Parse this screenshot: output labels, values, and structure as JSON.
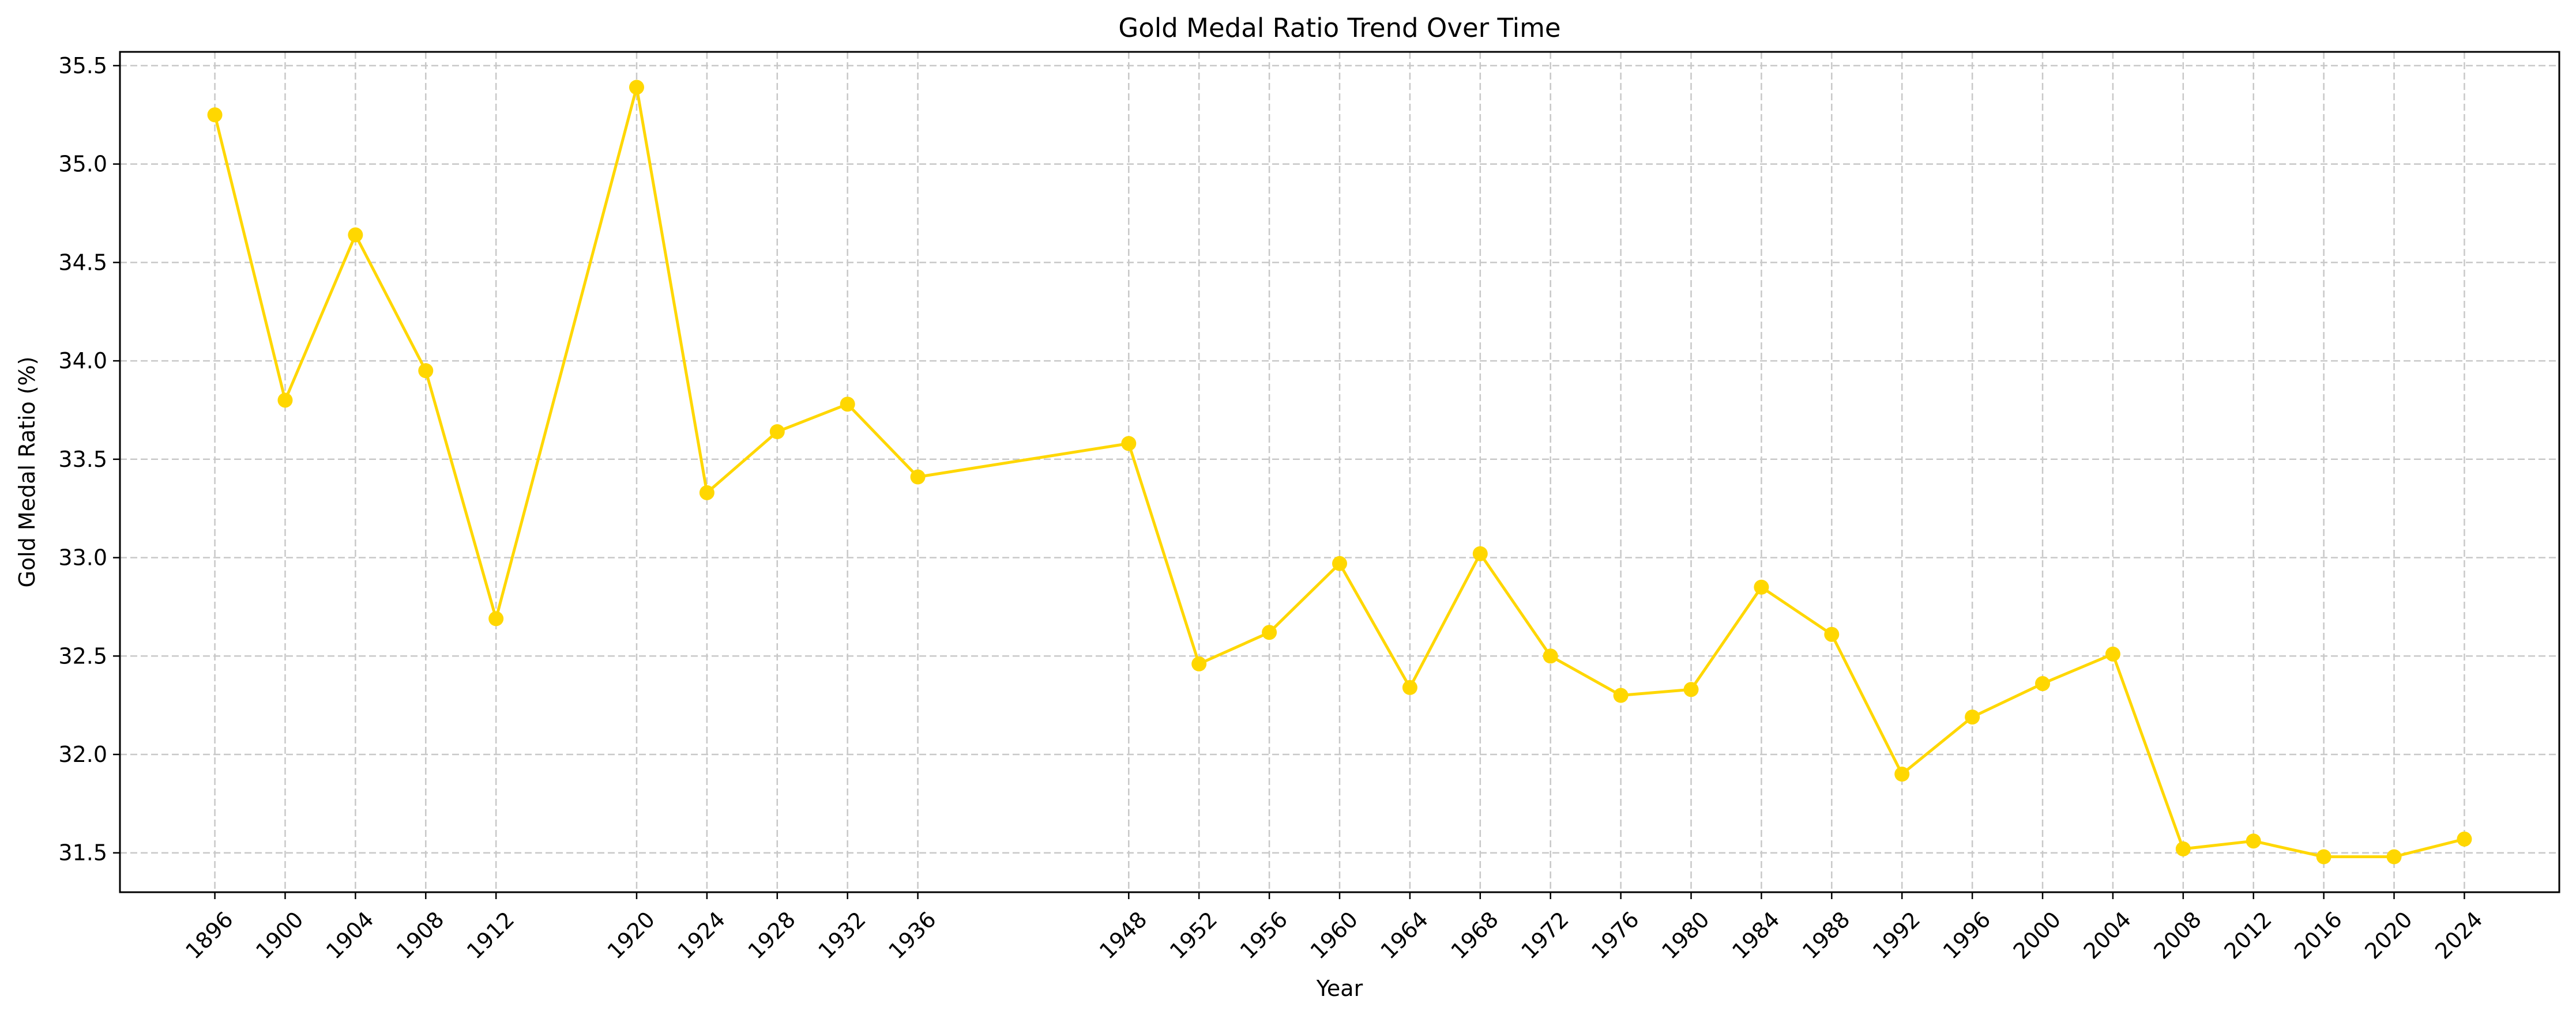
{
  "chart_data": {
    "type": "line",
    "title": "Gold Medal Ratio Trend Over Time",
    "xlabel": "Year",
    "ylabel": "Gold Medal Ratio (%)",
    "x": [
      1896,
      1900,
      1904,
      1908,
      1912,
      1920,
      1924,
      1928,
      1932,
      1936,
      1948,
      1952,
      1956,
      1960,
      1964,
      1968,
      1972,
      1976,
      1980,
      1984,
      1988,
      1992,
      1996,
      2000,
      2004,
      2008,
      2012,
      2016,
      2020,
      2024
    ],
    "x_tick_labels": [
      "1896",
      "1900",
      "1904",
      "1908",
      "1912",
      "1920",
      "1924",
      "1928",
      "1932",
      "1936",
      "1948",
      "1952",
      "1956",
      "1960",
      "1964",
      "1968",
      "1972",
      "1976",
      "1980",
      "1984",
      "1988",
      "1992",
      "1996",
      "2000",
      "2004",
      "2008",
      "2012",
      "2016",
      "2020",
      "2024"
    ],
    "series": [
      {
        "values": [
          35.25,
          33.8,
          34.64,
          33.95,
          32.69,
          35.39,
          33.33,
          33.64,
          33.78,
          33.41,
          33.58,
          32.46,
          32.62,
          32.97,
          32.34,
          33.02,
          32.5,
          32.3,
          32.33,
          32.85,
          32.61,
          31.9,
          32.19,
          32.36,
          32.51,
          31.52,
          31.56,
          31.48,
          31.48,
          31.57
        ],
        "color": "#ffd700"
      }
    ],
    "y_ticks": [
      31.5,
      32.0,
      32.5,
      33.0,
      33.5,
      34.0,
      34.5,
      35.0,
      35.5
    ],
    "y_tick_labels": [
      "31.5",
      "32.0",
      "32.5",
      "33.0",
      "33.5",
      "34.0",
      "34.5",
      "35.0",
      "35.5"
    ],
    "xlim": [
      1890.6,
      2029.4
    ],
    "ylim": [
      31.3,
      35.57
    ],
    "grid": true,
    "grid_style": "dashed",
    "marker": "circle",
    "line_color": "#ffd700",
    "grid_color": "#c8c8c8"
  }
}
